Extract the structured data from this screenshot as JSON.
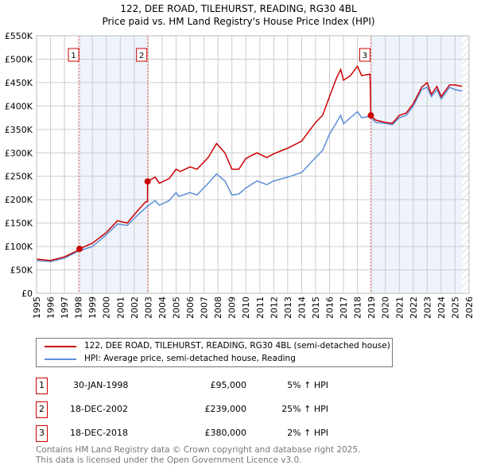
{
  "chart_data": {
    "type": "line",
    "title": "122, DEE ROAD, TILEHURST, READING, RG30 4BL",
    "subtitle": "Price paid vs. HM Land Registry's House Price Index (HPI)",
    "xlim": [
      1995,
      2026
    ],
    "ylim": [
      0,
      550000
    ],
    "x_ticks": [
      "1995",
      "1996",
      "1997",
      "1998",
      "1999",
      "2000",
      "2001",
      "2002",
      "2003",
      "2004",
      "2005",
      "2006",
      "2007",
      "2008",
      "2009",
      "2010",
      "2011",
      "2012",
      "2013",
      "2014",
      "2015",
      "2016",
      "2017",
      "2018",
      "2019",
      "2020",
      "2021",
      "2022",
      "2023",
      "2024",
      "2025",
      "2026"
    ],
    "y_ticks": [
      "£0",
      "£50K",
      "£100K",
      "£150K",
      "£200K",
      "£250K",
      "£300K",
      "£350K",
      "£400K",
      "£450K",
      "£500K",
      "£550K"
    ],
    "grid": true,
    "series": [
      {
        "name": "122, DEE ROAD, TILEHURST, READING, RG30 4BL (semi-detached house)",
        "color": "#cc0000",
        "points": [
          [
            1995,
            73
          ],
          [
            1996,
            70
          ],
          [
            1997,
            78
          ],
          [
            1998,
            92
          ],
          [
            1998.08,
            95
          ],
          [
            1999,
            107
          ],
          [
            2000,
            130
          ],
          [
            2000.8,
            155
          ],
          [
            2001.5,
            150
          ],
          [
            2002,
            168
          ],
          [
            2002.8,
            195
          ],
          [
            2002.95,
            196
          ],
          [
            2002.96,
            239
          ],
          [
            2003.5,
            248
          ],
          [
            2003.8,
            235
          ],
          [
            2004.5,
            245
          ],
          [
            2005,
            265
          ],
          [
            2005.3,
            260
          ],
          [
            2006,
            270
          ],
          [
            2006.5,
            265
          ],
          [
            2007.3,
            290
          ],
          [
            2007.9,
            320
          ],
          [
            2008.5,
            300
          ],
          [
            2009,
            265
          ],
          [
            2009.5,
            265
          ],
          [
            2010,
            288
          ],
          [
            2010.8,
            300
          ],
          [
            2011.5,
            290
          ],
          [
            2012,
            298
          ],
          [
            2013,
            310
          ],
          [
            2014,
            325
          ],
          [
            2015,
            365
          ],
          [
            2015.5,
            380
          ],
          [
            2016,
            420
          ],
          [
            2016.5,
            460
          ],
          [
            2016.8,
            478
          ],
          [
            2017,
            455
          ],
          [
            2017.5,
            465
          ],
          [
            2018,
            485
          ],
          [
            2018.3,
            465
          ],
          [
            2018.9,
            468
          ],
          [
            2018.96,
            380
          ],
          [
            2019.3,
            370
          ],
          [
            2020,
            365
          ],
          [
            2020.5,
            363
          ],
          [
            2021,
            380
          ],
          [
            2021.5,
            385
          ],
          [
            2022,
            405
          ],
          [
            2022.6,
            440
          ],
          [
            2023,
            450
          ],
          [
            2023.3,
            425
          ],
          [
            2023.7,
            442
          ],
          [
            2024,
            420
          ],
          [
            2024.6,
            445
          ],
          [
            2025,
            445
          ],
          [
            2025.5,
            442
          ]
        ]
      },
      {
        "name": "HPI: Average price, semi-detached house, Reading",
        "color": "#5b8fd6",
        "points": [
          [
            1995,
            70
          ],
          [
            1996,
            68
          ],
          [
            1997,
            75
          ],
          [
            1998,
            90
          ],
          [
            1999,
            100
          ],
          [
            2000,
            125
          ],
          [
            2000.8,
            148
          ],
          [
            2001.5,
            145
          ],
          [
            2002,
            160
          ],
          [
            2002.9,
            185
          ],
          [
            2003.5,
            198
          ],
          [
            2003.8,
            188
          ],
          [
            2004.5,
            198
          ],
          [
            2005,
            215
          ],
          [
            2005.2,
            207
          ],
          [
            2006,
            215
          ],
          [
            2006.5,
            210
          ],
          [
            2007.3,
            235
          ],
          [
            2007.9,
            255
          ],
          [
            2008.5,
            240
          ],
          [
            2009,
            210
          ],
          [
            2009.5,
            212
          ],
          [
            2010,
            225
          ],
          [
            2010.8,
            240
          ],
          [
            2011.5,
            232
          ],
          [
            2012,
            240
          ],
          [
            2013,
            248
          ],
          [
            2014,
            258
          ],
          [
            2015,
            290
          ],
          [
            2015.5,
            305
          ],
          [
            2016,
            340
          ],
          [
            2016.5,
            365
          ],
          [
            2016.8,
            380
          ],
          [
            2017,
            362
          ],
          [
            2017.5,
            375
          ],
          [
            2018,
            388
          ],
          [
            2018.3,
            375
          ],
          [
            2018.9,
            378
          ],
          [
            2019.3,
            365
          ],
          [
            2020,
            363
          ],
          [
            2020.5,
            360
          ],
          [
            2021,
            375
          ],
          [
            2021.5,
            380
          ],
          [
            2022,
            400
          ],
          [
            2022.6,
            435
          ],
          [
            2023,
            440
          ],
          [
            2023.3,
            420
          ],
          [
            2023.7,
            435
          ],
          [
            2024,
            415
          ],
          [
            2024.6,
            440
          ],
          [
            2025,
            435
          ],
          [
            2025.5,
            432
          ]
        ]
      }
    ],
    "points_unit": "£K",
    "sales": [
      {
        "label": "1",
        "x": 1998.08,
        "value": 95
      },
      {
        "label": "2",
        "x": 2002.96,
        "value": 239
      },
      {
        "label": "3",
        "x": 2018.96,
        "value": 380
      }
    ],
    "data_end": 2025.5,
    "legend_placement": "below"
  },
  "legend": {
    "items": [
      "122, DEE ROAD, TILEHURST, READING, RG30 4BL (semi-detached house)",
      "HPI: Average price, semi-detached house, Reading"
    ]
  },
  "transactions": [
    {
      "num": "1",
      "date": "30-JAN-1998",
      "price": "£95,000",
      "hpi": "5% ↑ HPI"
    },
    {
      "num": "2",
      "date": "18-DEC-2002",
      "price": "£239,000",
      "hpi": "25% ↑ HPI"
    },
    {
      "num": "3",
      "date": "18-DEC-2018",
      "price": "£380,000",
      "hpi": "2% ↑ HPI"
    }
  ],
  "footer": {
    "line1": "Contains HM Land Registry data © Crown copyright and database right 2025.",
    "line2": "This data is licensed under the Open Government Licence v3.0."
  }
}
